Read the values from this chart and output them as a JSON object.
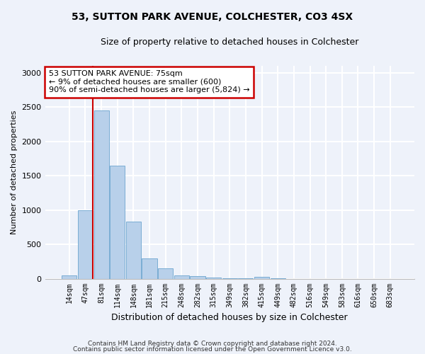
{
  "title1": "53, SUTTON PARK AVENUE, COLCHESTER, CO3 4SX",
  "title2": "Size of property relative to detached houses in Colchester",
  "xlabel": "Distribution of detached houses by size in Colchester",
  "ylabel": "Number of detached properties",
  "categories": [
    "14sqm",
    "47sqm",
    "81sqm",
    "114sqm",
    "148sqm",
    "181sqm",
    "215sqm",
    "248sqm",
    "282sqm",
    "315sqm",
    "349sqm",
    "382sqm",
    "415sqm",
    "449sqm",
    "482sqm",
    "516sqm",
    "549sqm",
    "583sqm",
    "616sqm",
    "650sqm",
    "683sqm"
  ],
  "values": [
    50,
    1000,
    2450,
    1650,
    830,
    290,
    145,
    50,
    35,
    20,
    5,
    3,
    25,
    3,
    0,
    0,
    0,
    0,
    0,
    0,
    0
  ],
  "bar_color": "#b8d0ea",
  "bar_edge_color": "#7aadd4",
  "vline_color": "#cc0000",
  "annotation_text": "53 SUTTON PARK AVENUE: 75sqm\n← 9% of detached houses are smaller (600)\n90% of semi-detached houses are larger (5,824) →",
  "annotation_box_color": "#ffffff",
  "annotation_box_edge": "#cc0000",
  "ylim": [
    0,
    3100
  ],
  "yticks": [
    0,
    500,
    1000,
    1500,
    2000,
    2500,
    3000
  ],
  "footnote1": "Contains HM Land Registry data © Crown copyright and database right 2024.",
  "footnote2": "Contains public sector information licensed under the Open Government Licence v3.0.",
  "bg_color": "#eef2fa",
  "grid_color": "#ffffff"
}
